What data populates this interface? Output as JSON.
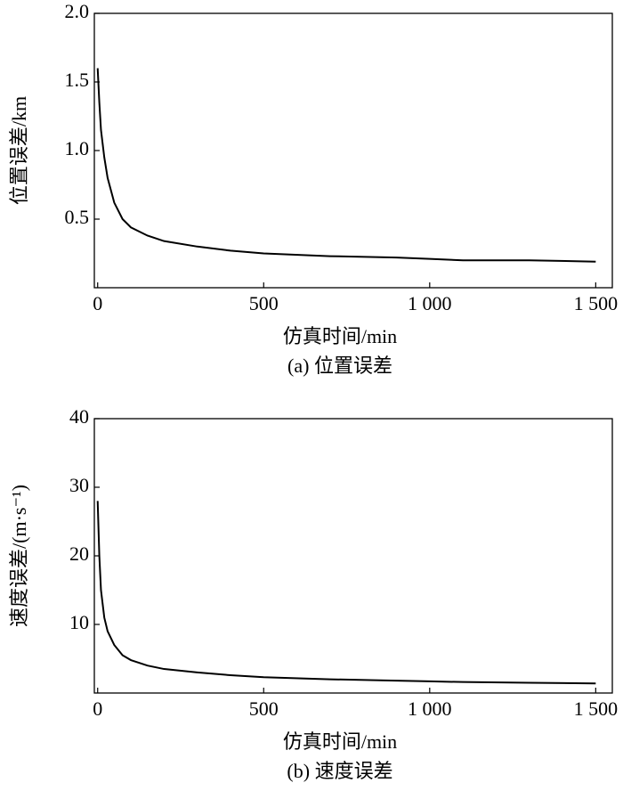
{
  "chart_data": [
    {
      "type": "line",
      "caption": "(a) 位置误差",
      "xlabel": "仿真时间/min",
      "ylabel": "位置误差/km",
      "x": [
        0,
        5,
        10,
        20,
        30,
        50,
        75,
        100,
        150,
        200,
        300,
        400,
        500,
        700,
        900,
        1000,
        1100,
        1300,
        1500
      ],
      "series": [
        {
          "color": "#000000",
          "values": [
            1.6,
            1.35,
            1.15,
            0.95,
            0.8,
            0.62,
            0.5,
            0.44,
            0.38,
            0.34,
            0.3,
            0.27,
            0.25,
            0.23,
            0.22,
            0.21,
            0.2,
            0.2,
            0.19
          ]
        }
      ],
      "xlim": [
        -10,
        1550
      ],
      "ylim": [
        0,
        2
      ],
      "xticks": [
        0,
        500,
        {
          "value": 1000,
          "label": "1 000"
        },
        {
          "value": 1500,
          "label": "1 500"
        }
      ],
      "yticks": [
        0.5,
        {
          "value": 1,
          "label": "1.0"
        },
        1.5,
        {
          "value": 2,
          "label": "2.0"
        }
      ]
    },
    {
      "type": "line",
      "caption": "(b) 速度误差",
      "xlabel": "仿真时间/min",
      "ylabel": "速度误差/(m·s⁻¹)",
      "x": [
        0,
        5,
        10,
        20,
        30,
        50,
        75,
        100,
        150,
        200,
        300,
        400,
        500,
        700,
        900,
        1000,
        1100,
        1300,
        1500
      ],
      "series": [
        {
          "color": "#000000",
          "values": [
            28,
            20,
            15,
            11,
            9,
            7,
            5.5,
            4.8,
            4,
            3.5,
            3,
            2.6,
            2.3,
            2,
            1.8,
            1.7,
            1.6,
            1.5,
            1.4
          ]
        }
      ],
      "xlim": [
        -10,
        1550
      ],
      "ylim": [
        0,
        40
      ],
      "xticks": [
        0,
        500,
        {
          "value": 1000,
          "label": "1 000"
        },
        {
          "value": 1500,
          "label": "1 500"
        }
      ],
      "yticks": [
        10,
        20,
        30,
        40
      ]
    }
  ]
}
